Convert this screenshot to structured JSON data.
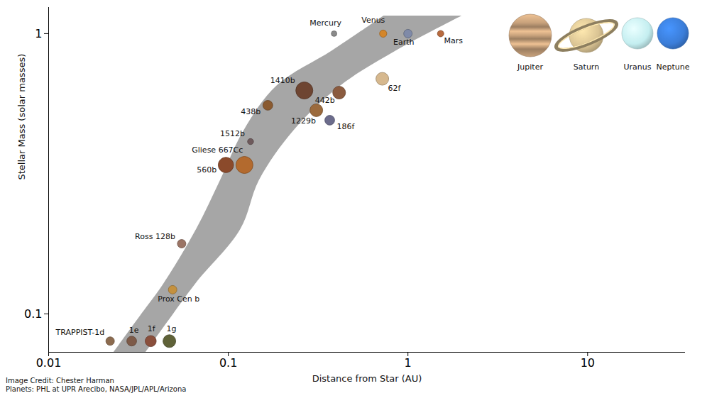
{
  "chart_data": {
    "type": "scatter",
    "x_label": "Distance from Star (AU)",
    "y_label": "Stellar Mass (solar masses)",
    "log": true,
    "grid": false,
    "xlim": [
      0.01,
      35
    ],
    "ylim": [
      0.073,
      1.24
    ],
    "xticks": [
      0.01,
      0.1,
      1,
      10
    ],
    "yticks": [
      0.1,
      1
    ],
    "labels": [
      "TRAPPIST-1d",
      "1e",
      "1f",
      "1g",
      "Prox Cen b",
      "Ross 128b",
      "560b",
      "Gliese 667Cc",
      "1512b",
      "438b",
      "1410b",
      "442b",
      "1229b",
      "186f",
      "62f",
      "Mercury",
      "Venus",
      "Earth",
      "Mars"
    ],
    "x": [
      0.022,
      0.029,
      0.037,
      0.047,
      0.049,
      0.055,
      0.097,
      0.123,
      0.133,
      0.166,
      0.265,
      0.414,
      0.309,
      0.367,
      0.72,
      0.388,
      0.728,
      1.0,
      1.52
    ],
    "y": [
      0.08,
      0.08,
      0.08,
      0.08,
      0.122,
      0.178,
      0.34,
      0.34,
      0.412,
      0.555,
      0.627,
      0.616,
      0.533,
      0.491,
      0.69,
      1.0,
      1.0,
      1.0,
      1.0
    ],
    "sizes": [
      1.0,
      1.15,
      1.3,
      1.5,
      1.0,
      1.0,
      1.8,
      2.0,
      0.7,
      1.15,
      2.0,
      1.5,
      1.5,
      1.15,
      1.5,
      0.65,
      0.85,
      1.0,
      0.75
    ],
    "colors": [
      "#8c6b4f",
      "#7d5a48",
      "#8a4f3c",
      "#5f6238",
      "#c4913f",
      "#9b7465",
      "#8b4a2b",
      "#b36a2e",
      "#6e5a5c",
      "#8a5a30",
      "#6e4532",
      "#8b5b3f",
      "#9b6a3c",
      "#6c6c8c",
      "#d6b88e",
      "#8a8a8a",
      "#d4862a",
      "#7f8aa8",
      "#b86a3e"
    ],
    "habitable_zone": {
      "y": [
        0.073,
        0.1,
        0.128,
        0.2,
        0.3,
        0.45,
        0.65,
        0.87,
        1.157
      ],
      "inner": [
        0.0231,
        0.033,
        0.0437,
        0.0664,
        0.0905,
        0.122,
        0.186,
        0.381,
        0.734
      ],
      "outer": [
        0.0348,
        0.0496,
        0.0658,
        0.117,
        0.149,
        0.231,
        0.421,
        0.865,
        2.0
      ],
      "color": "#a6a6a6"
    },
    "giant_planets": [
      {
        "name": "Jupiter",
        "color": "#c8a27c"
      },
      {
        "name": "Saturn",
        "color": "#d9c393"
      },
      {
        "name": "Uranus",
        "color": "#c4eef0"
      },
      {
        "name": "Neptune",
        "color": "#3b7dd8"
      }
    ],
    "credits": [
      "Image Credit: Chester Harman",
      "Planets: PHL at UPR Arecibo, NASA/JPL/APL/Arizona"
    ]
  }
}
